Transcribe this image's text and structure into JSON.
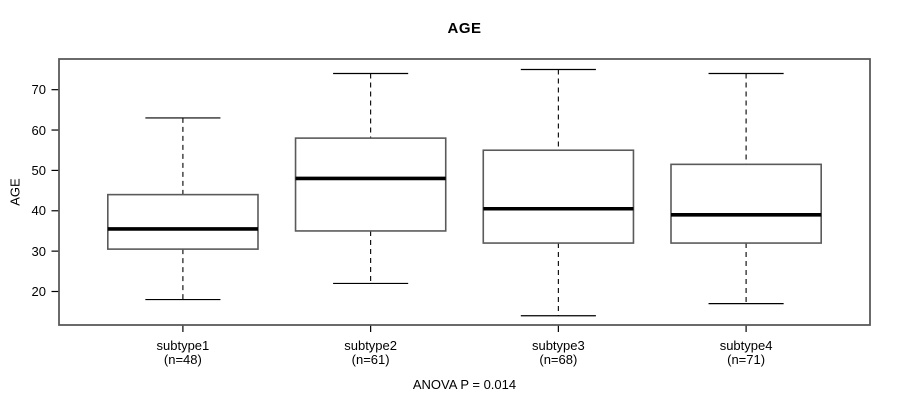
{
  "chart_data": {
    "type": "boxplot",
    "title": "AGE",
    "ylabel": "AGE",
    "xlabel": "",
    "annotation": "ANOVA P = 0.014",
    "ylim": [
      11.7,
      77.6
    ],
    "yticks": [
      20,
      30,
      40,
      50,
      60,
      70
    ],
    "grid": false,
    "legend": null,
    "categories": [
      "subtype1",
      "subtype2",
      "subtype3",
      "subtype4"
    ],
    "groups": [
      {
        "label": "subtype1",
        "sublabel": "(n=48)",
        "n": 48,
        "whisker_low": 18,
        "q1": 30.5,
        "median": 35.5,
        "q3": 44,
        "whisker_high": 63
      },
      {
        "label": "subtype2",
        "sublabel": "(n=61)",
        "n": 61,
        "whisker_low": 22,
        "q1": 35,
        "median": 48,
        "q3": 58,
        "whisker_high": 74
      },
      {
        "label": "subtype3",
        "sublabel": "(n=68)",
        "n": 68,
        "whisker_low": 14,
        "q1": 32,
        "median": 40.5,
        "q3": 55,
        "whisker_high": 75
      },
      {
        "label": "subtype4",
        "sublabel": "(n=71)",
        "n": 71,
        "whisker_low": 17,
        "q1": 32,
        "median": 39,
        "q3": 51.5,
        "whisker_high": 74
      }
    ],
    "colors": {
      "line": "#000000",
      "frame": "#5a5a5a",
      "box_border": "#5a5a5a",
      "box_fill": "#ffffff",
      "background": "#ffffff"
    }
  }
}
